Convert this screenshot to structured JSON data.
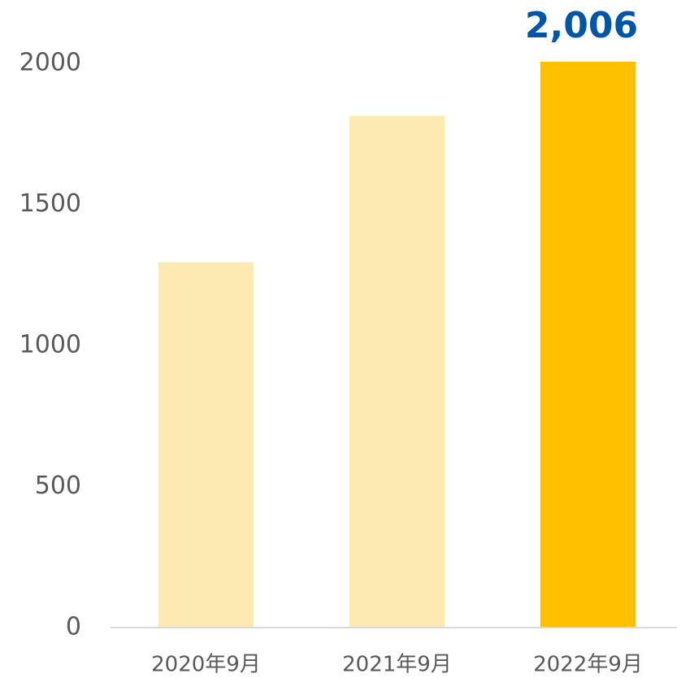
{
  "chart_data": {
    "type": "bar",
    "categories": [
      "2020年9月",
      "2021年9月",
      "2022年9月"
    ],
    "values": [
      1295,
      1814,
      2006
    ],
    "value_labels": [
      null,
      null,
      "2,006"
    ],
    "colors": [
      "#fde9b2",
      "#fde9b2",
      "#ffc000"
    ],
    "value_label_color": "#0056a6",
    "ylim": [
      0,
      2000
    ],
    "yticks": [
      0,
      500,
      1000,
      1500,
      2000
    ],
    "grid": false
  }
}
